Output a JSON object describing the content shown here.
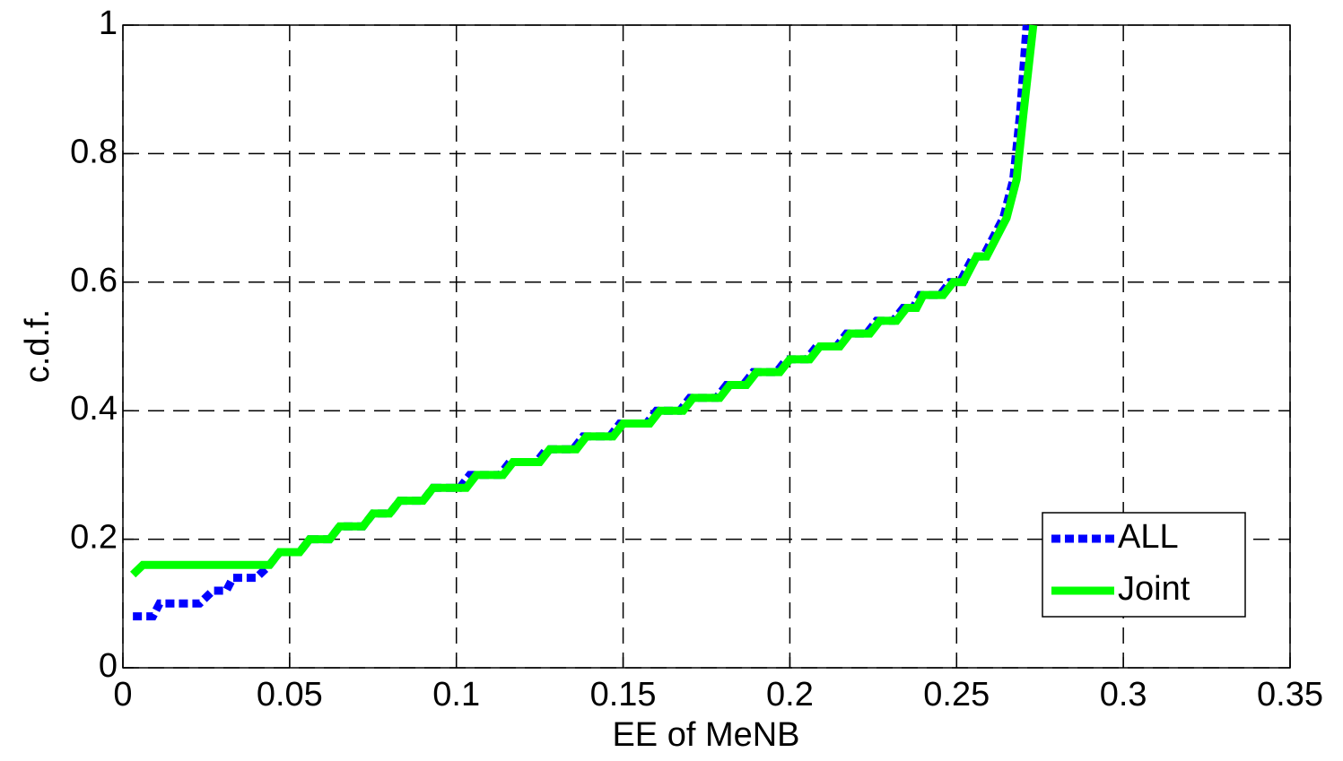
{
  "chart_data": {
    "type": "line",
    "x_label": "EE of MeNB",
    "y_label": "c.d.f.",
    "xlim": [
      0,
      0.35
    ],
    "ylim": [
      0,
      1
    ],
    "xticks": [
      0,
      0.05,
      0.1,
      0.15,
      0.2,
      0.25,
      0.3,
      0.35
    ],
    "yticks": [
      0,
      0.2,
      0.4,
      0.6,
      0.8,
      1
    ],
    "grid": true,
    "legend": "lower right",
    "series": [
      {
        "name": "ALL",
        "color": "#0000ff",
        "line_style": "dotted",
        "x": [
          0.003,
          0.009,
          0.011,
          0.023,
          0.027,
          0.031,
          0.033,
          0.04,
          0.044,
          0.047,
          0.053,
          0.056,
          0.062,
          0.065,
          0.072,
          0.075,
          0.08,
          0.083,
          0.09,
          0.093,
          0.101,
          0.104,
          0.113,
          0.116,
          0.124,
          0.127,
          0.135,
          0.138,
          0.146,
          0.149,
          0.157,
          0.16,
          0.167,
          0.17,
          0.178,
          0.181,
          0.186,
          0.189,
          0.196,
          0.199,
          0.205,
          0.208,
          0.214,
          0.217,
          0.223,
          0.226,
          0.231,
          0.234,
          0.237,
          0.239,
          0.245,
          0.248,
          0.251,
          0.255,
          0.258,
          0.264,
          0.267,
          0.269,
          0.271
        ],
        "values": [
          0.08,
          0.08,
          0.1,
          0.1,
          0.12,
          0.12,
          0.14,
          0.14,
          0.16,
          0.18,
          0.18,
          0.2,
          0.2,
          0.22,
          0.22,
          0.24,
          0.24,
          0.26,
          0.26,
          0.28,
          0.28,
          0.3,
          0.3,
          0.32,
          0.32,
          0.34,
          0.34,
          0.36,
          0.36,
          0.38,
          0.38,
          0.4,
          0.4,
          0.42,
          0.42,
          0.44,
          0.44,
          0.46,
          0.46,
          0.48,
          0.48,
          0.5,
          0.5,
          0.52,
          0.52,
          0.54,
          0.54,
          0.56,
          0.56,
          0.58,
          0.58,
          0.6,
          0.6,
          0.64,
          0.64,
          0.7,
          0.76,
          0.86,
          1
        ]
      },
      {
        "name": "Joint",
        "color": "#00ff00",
        "line_style": "solid",
        "x": [
          0.003,
          0.006,
          0.044,
          0.047,
          0.053,
          0.056,
          0.062,
          0.065,
          0.072,
          0.075,
          0.08,
          0.083,
          0.09,
          0.093,
          0.103,
          0.106,
          0.114,
          0.117,
          0.125,
          0.128,
          0.136,
          0.139,
          0.147,
          0.15,
          0.158,
          0.161,
          0.168,
          0.171,
          0.179,
          0.182,
          0.187,
          0.19,
          0.197,
          0.2,
          0.206,
          0.209,
          0.215,
          0.218,
          0.224,
          0.227,
          0.232,
          0.235,
          0.238,
          0.24,
          0.246,
          0.249,
          0.252,
          0.256,
          0.259,
          0.265,
          0.268,
          0.27,
          0.273
        ],
        "values": [
          0.145,
          0.16,
          0.16,
          0.18,
          0.18,
          0.2,
          0.2,
          0.22,
          0.22,
          0.24,
          0.24,
          0.26,
          0.26,
          0.28,
          0.28,
          0.3,
          0.3,
          0.32,
          0.32,
          0.34,
          0.34,
          0.36,
          0.36,
          0.38,
          0.38,
          0.4,
          0.4,
          0.42,
          0.42,
          0.44,
          0.44,
          0.46,
          0.46,
          0.48,
          0.48,
          0.5,
          0.5,
          0.52,
          0.52,
          0.54,
          0.54,
          0.56,
          0.56,
          0.58,
          0.58,
          0.6,
          0.6,
          0.64,
          0.64,
          0.7,
          0.76,
          0.86,
          1
        ]
      }
    ]
  }
}
